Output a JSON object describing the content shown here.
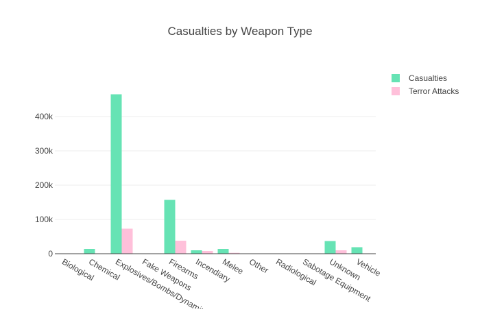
{
  "chart_data": {
    "type": "bar",
    "title": "Casualties by Weapon Type",
    "xlabel": "",
    "ylabel": "",
    "categories": [
      "Biological",
      "Chemical",
      "Explosives/Bombs/Dynamite",
      "Fake Weapons",
      "Firearms",
      "Incendiary",
      "Melee",
      "Other",
      "Radiological",
      "Sabotage Equipment",
      "Unknown",
      "Vehicle"
    ],
    "series": [
      {
        "name": "Casualties",
        "color": "#66e3b4",
        "values": [
          370,
          14000,
          465000,
          0,
          157000,
          10000,
          14000,
          400,
          10,
          300,
          37000,
          19000
        ]
      },
      {
        "name": "Terror Attacks",
        "color": "#ffc0da",
        "values": [
          35,
          320,
          73000,
          30,
          38000,
          8000,
          2600,
          100,
          10,
          140,
          10000,
          60
        ]
      }
    ],
    "ylim": [
      0,
      500000
    ],
    "yticks": [
      0,
      100000,
      200000,
      300000,
      400000
    ],
    "ytick_labels": [
      "0",
      "100k",
      "200k",
      "300k",
      "400k"
    ],
    "grid": true,
    "legend": "top-right"
  }
}
